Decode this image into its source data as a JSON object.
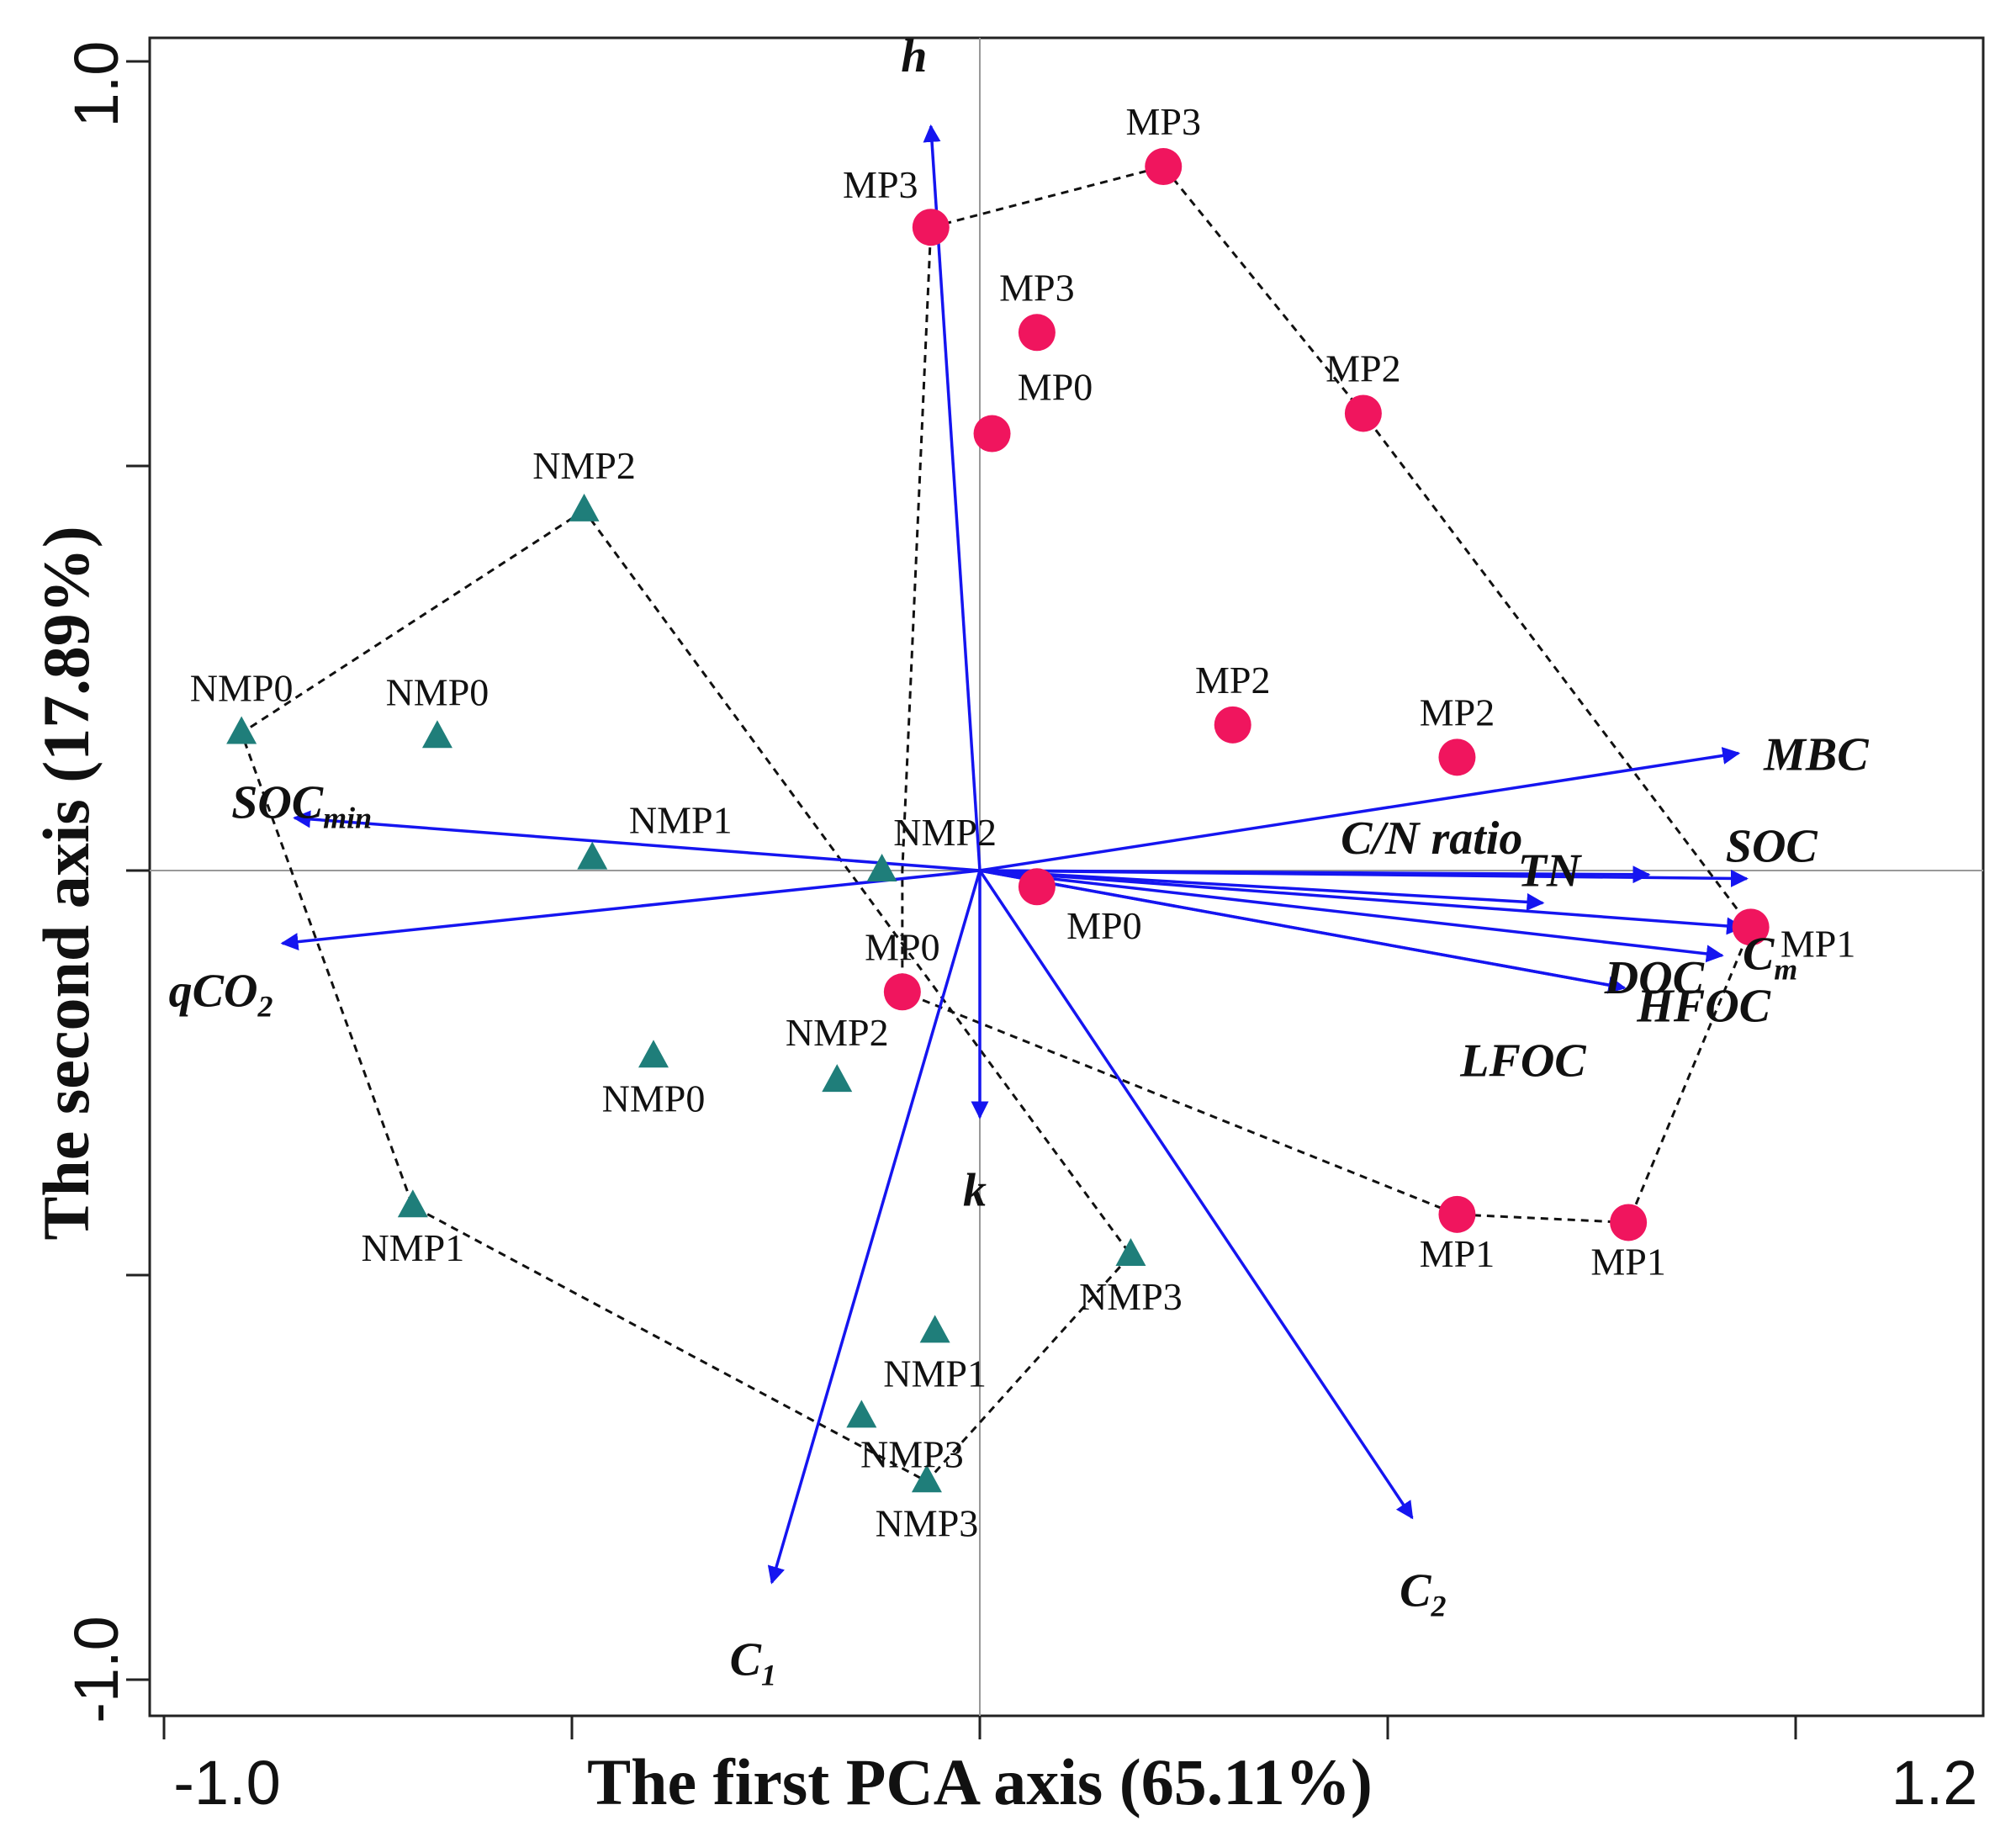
{
  "chart_data": {
    "type": "scatter",
    "xlabel": "The first PCA axis (65.11%)",
    "ylabel": "The second axis (17.89%)",
    "xlim": [
      -1.0,
      1.2
    ],
    "ylim": [
      -1.0,
      1.0
    ],
    "x_tick_labels": [
      "-1.0",
      "1.2"
    ],
    "y_tick_labels": [
      "-1.0",
      "1.0"
    ],
    "ref_lines": {
      "x": 0,
      "y": 0
    },
    "colors": {
      "MP": "#f0155e",
      "NMP": "#1f7e7a",
      "arrow": "#1515f0",
      "hull": "#111111",
      "frame": "#222222"
    },
    "series": [
      {
        "name": "MP",
        "marker": "circle",
        "points": [
          {
            "label": "MP3",
            "x": -0.06,
            "y": 0.795
          },
          {
            "label": "MP3",
            "x": 0.225,
            "y": 0.87
          },
          {
            "label": "MP3",
            "x": 0.07,
            "y": 0.665
          },
          {
            "label": "MP0",
            "x": 0.015,
            "y": 0.54
          },
          {
            "label": "MP2",
            "x": 0.47,
            "y": 0.565
          },
          {
            "label": "MP2",
            "x": 0.31,
            "y": 0.18
          },
          {
            "label": "MP2",
            "x": 0.585,
            "y": 0.14
          },
          {
            "label": "MP0",
            "x": 0.07,
            "y": -0.02
          },
          {
            "label": "MP0",
            "x": -0.095,
            "y": -0.15
          },
          {
            "label": "MP1",
            "x": 0.945,
            "y": -0.07
          },
          {
            "label": "MP1",
            "x": 0.585,
            "y": -0.425
          },
          {
            "label": "MP1",
            "x": 0.795,
            "y": -0.435
          }
        ]
      },
      {
        "name": "NMP",
        "marker": "triangle",
        "points": [
          {
            "label": "NMP2",
            "x": -0.485,
            "y": 0.445
          },
          {
            "label": "NMP0",
            "x": -0.905,
            "y": 0.17
          },
          {
            "label": "NMP0",
            "x": -0.665,
            "y": 0.165
          },
          {
            "label": "NMP1",
            "x": -0.475,
            "y": 0.015
          },
          {
            "label": "NMP2",
            "x": -0.12,
            "y": 0.0
          },
          {
            "label": "NMP0",
            "x": -0.4,
            "y": -0.23
          },
          {
            "label": "NMP2",
            "x": -0.175,
            "y": -0.26
          },
          {
            "label": "NMP1",
            "x": -0.695,
            "y": -0.415
          },
          {
            "label": "NMP3",
            "x": 0.185,
            "y": -0.475
          },
          {
            "label": "NMP1",
            "x": -0.055,
            "y": -0.57
          },
          {
            "label": "NMP3",
            "x": -0.145,
            "y": -0.675
          },
          {
            "label": "NMP3",
            "x": -0.065,
            "y": -0.755
          }
        ]
      }
    ],
    "hulls": [
      {
        "group": "MP",
        "points": [
          [
            -0.06,
            0.795
          ],
          [
            0.225,
            0.87
          ],
          [
            0.47,
            0.565
          ],
          [
            0.945,
            -0.07
          ],
          [
            0.795,
            -0.435
          ],
          [
            0.585,
            -0.425
          ],
          [
            -0.095,
            -0.15
          ],
          [
            -0.095,
            0.0
          ],
          [
            -0.06,
            0.795
          ]
        ]
      },
      {
        "group": "NMP",
        "points": [
          [
            -0.485,
            0.445
          ],
          [
            -0.905,
            0.17
          ],
          [
            -0.695,
            -0.415
          ],
          [
            -0.065,
            -0.755
          ],
          [
            0.185,
            -0.475
          ],
          [
            -0.485,
            0.445
          ]
        ]
      }
    ],
    "loadings": [
      {
        "name": "h",
        "x": -0.06,
        "y": 0.92
      },
      {
        "name": "MBC",
        "x": 0.93,
        "y": 0.145
      },
      {
        "name": "C/N ratio",
        "x": 0.82,
        "y": -0.005
      },
      {
        "name": "SOC",
        "x": 0.94,
        "y": -0.01
      },
      {
        "name": "TN",
        "x": 0.69,
        "y": -0.04
      },
      {
        "name": "Cm",
        "x": 0.935,
        "y": -0.07
      },
      {
        "name": "DOC",
        "x": 0.91,
        "y": -0.105
      },
      {
        "name": "HFOC",
        "x": 0.79,
        "y": -0.145
      },
      {
        "name": "LFOC",
        "x": 0.79,
        "y": -0.145
      },
      {
        "name": "SOCmin",
        "x": -0.84,
        "y": 0.065
      },
      {
        "name": "qCO2",
        "x": -0.855,
        "y": -0.09
      },
      {
        "name": "k",
        "x": 0.0,
        "y": -0.305
      },
      {
        "name": "C1",
        "x": -0.255,
        "y": -0.88
      },
      {
        "name": "C2",
        "x": 0.53,
        "y": -0.8
      }
    ]
  }
}
